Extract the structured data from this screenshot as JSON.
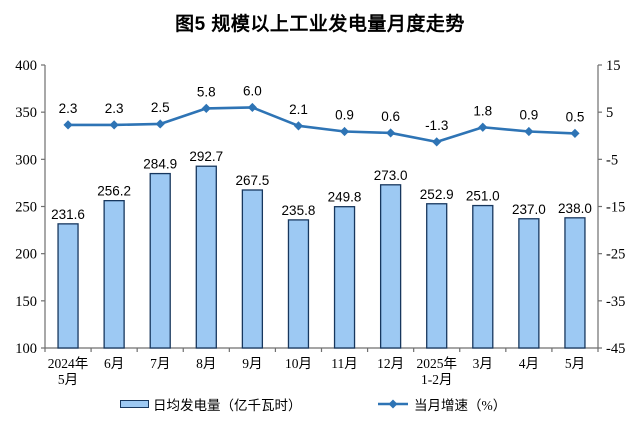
{
  "title": "图5 规模以上工业发电量月度走势",
  "chart_data": {
    "type": "combo-bar-line",
    "title": "图5 规模以上工业发电量月度走势",
    "categories": [
      [
        "2024年",
        "5月"
      ],
      [
        "6月"
      ],
      [
        "7月"
      ],
      [
        "8月"
      ],
      [
        "9月"
      ],
      [
        "10月"
      ],
      [
        "11月"
      ],
      [
        "12月"
      ],
      [
        "2025年",
        "1-2月"
      ],
      [
        "3月"
      ],
      [
        "4月"
      ],
      [
        "5月"
      ]
    ],
    "series": [
      {
        "name": "日均发电量（亿千瓦时）",
        "type": "bar",
        "axis": "left",
        "values": [
          231.6,
          256.2,
          284.9,
          292.7,
          267.5,
          235.8,
          249.8,
          273.0,
          252.9,
          251.0,
          237.0,
          238.0
        ],
        "labels": [
          "231.6",
          "256.2",
          "284.9",
          "292.7",
          "267.5",
          "235.8",
          "249.8",
          "273.0",
          "252.9",
          "251.0",
          "237.0",
          "238.0"
        ]
      },
      {
        "name": "当月增速（%）",
        "type": "line",
        "axis": "right",
        "values": [
          2.3,
          2.3,
          2.5,
          5.8,
          6.0,
          2.1,
          0.9,
          0.6,
          -1.3,
          1.8,
          0.9,
          0.5
        ],
        "labels": [
          "2.3",
          "2.3",
          "2.5",
          "5.8",
          "6.0",
          "2.1",
          "0.9",
          "0.6",
          "-1.3",
          "1.8",
          "0.9",
          "0.5"
        ]
      }
    ],
    "left_axis": {
      "min": 100,
      "max": 400,
      "step": 50,
      "tick_labels": [
        "400",
        "350",
        "300",
        "250",
        "200",
        "150",
        "100"
      ]
    },
    "right_axis": {
      "min": -45,
      "max": 15,
      "step": 10,
      "tick_labels": [
        "15",
        "5",
        "-5",
        "-15",
        "-25",
        "-35",
        "-45"
      ]
    },
    "legend": [
      {
        "label": "日均发电量（亿千瓦时）",
        "swatch": "bar"
      },
      {
        "label": "当月增速（%）",
        "swatch": "line"
      }
    ],
    "colors": {
      "bar_fill": "#9DC9F3",
      "bar_border": "#17375E",
      "line": "#2E74B5",
      "axis": "#6F6F6F",
      "text": "#000000"
    },
    "grid": false,
    "legend_position": "bottom"
  }
}
